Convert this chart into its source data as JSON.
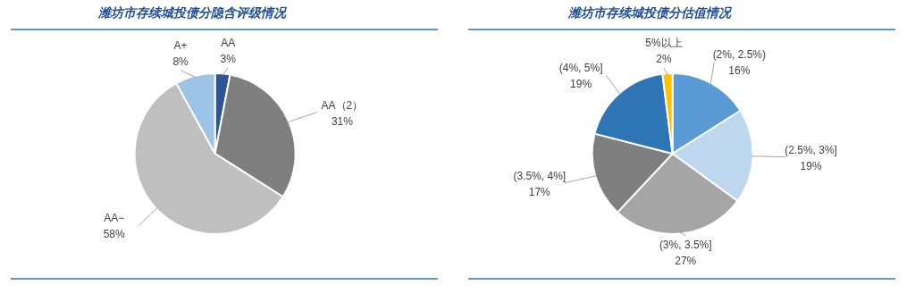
{
  "chart_data": [
    {
      "type": "pie",
      "title": "潍坊市存续城投债分隐含评级情况",
      "categories": [
        "AA",
        "AA（2）",
        "AA−",
        "A+"
      ],
      "values": [
        3,
        31,
        58,
        8
      ],
      "colors": [
        "#2e5597",
        "#7f7f7f",
        "#bfbfbf",
        "#9dc3e6"
      ],
      "value_labels": [
        "3%",
        "31%",
        "58%",
        "8%"
      ]
    },
    {
      "type": "pie",
      "title": "潍坊市存续城投债分估值情况",
      "categories": [
        "(2%, 2.5%)",
        "(2.5%, 3%]",
        "(3%, 3.5%]",
        "(3.5%, 4%]",
        "(4%, 5%]",
        "5%以上"
      ],
      "values": [
        16,
        19,
        27,
        17,
        19,
        2
      ],
      "colors": [
        "#5b9bd5",
        "#bdd7ee",
        "#a5a5a5",
        "#7f7f7f",
        "#2e75b6",
        "#ffc000"
      ],
      "value_labels": [
        "16%",
        "19%",
        "27%",
        "17%",
        "19%",
        "2%"
      ]
    }
  ]
}
